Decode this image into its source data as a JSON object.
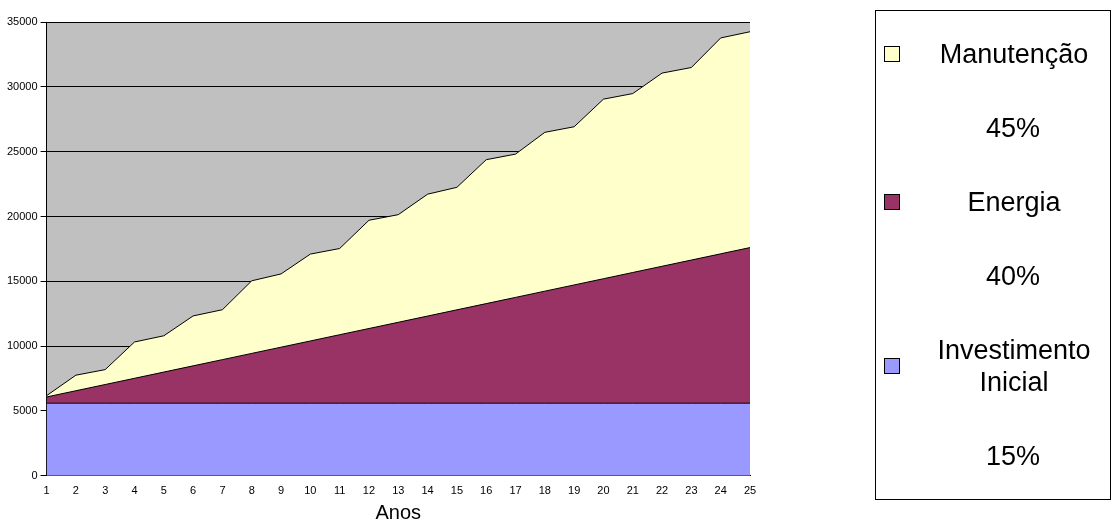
{
  "chart_data": {
    "type": "area",
    "stacked": true,
    "xlabel": "Anos",
    "x": [
      1,
      2,
      3,
      4,
      5,
      6,
      7,
      8,
      9,
      10,
      11,
      12,
      13,
      14,
      15,
      16,
      17,
      18,
      19,
      20,
      21,
      22,
      23,
      24,
      25
    ],
    "xlim": [
      1,
      25
    ],
    "xticks": [
      1,
      2,
      3,
      4,
      5,
      6,
      7,
      8,
      9,
      10,
      11,
      12,
      13,
      14,
      15,
      16,
      17,
      18,
      19,
      20,
      21,
      22,
      23,
      24,
      25
    ],
    "ylim": [
      0,
      35000
    ],
    "yticks": [
      0,
      5000,
      10000,
      15000,
      20000,
      25000,
      30000,
      35000
    ],
    "grid": "y",
    "legend": "right",
    "series": [
      {
        "name": "Investimento Inicial",
        "color": "#9999ff",
        "values": [
          5600,
          5600,
          5600,
          5600,
          5600,
          5600,
          5600,
          5600,
          5600,
          5600,
          5600,
          5600,
          5600,
          5600,
          5600,
          5600,
          5600,
          5600,
          5600,
          5600,
          5600,
          5600,
          5600,
          5600,
          5600
        ]
      },
      {
        "name": "Energia",
        "color": "#993366",
        "values": [
          480,
          960,
          1440,
          1920,
          2400,
          2880,
          3360,
          3840,
          4320,
          4800,
          5280,
          5760,
          6240,
          6720,
          7200,
          7680,
          8160,
          8640,
          9120,
          9600,
          10080,
          10560,
          11040,
          11520,
          12000
        ]
      },
      {
        "name": "Manutenção",
        "color": "#ffffcc",
        "values": [
          100,
          1200,
          1150,
          2800,
          2800,
          3850,
          3850,
          5600,
          5650,
          6700,
          6650,
          8350,
          8300,
          9400,
          9450,
          11100,
          11050,
          12250,
          12200,
          13850,
          13800,
          14900,
          14850,
          16650,
          16650
        ]
      }
    ],
    "annotations": [
      "15%",
      "40%",
      "45%"
    ]
  }
}
